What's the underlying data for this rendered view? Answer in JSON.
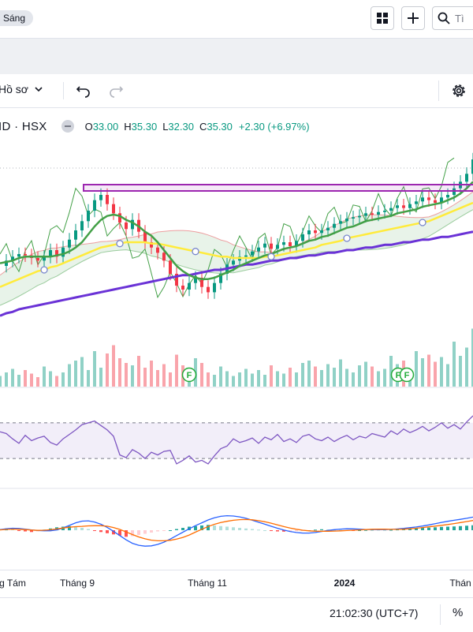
{
  "topbar": {
    "theme_label": "Sáng",
    "search_placeholder": "Tì"
  },
  "toolbar": {
    "profile_label": "Hồ sơ"
  },
  "legend": {
    "symbol": "ID · HSX",
    "o_key": "O",
    "o_val": "33.00",
    "h_key": "H",
    "h_val": "35.30",
    "l_key": "L",
    "l_val": "32.30",
    "c_key": "C",
    "c_val": "35.30",
    "change": "+2.30 (+6.97%)"
  },
  "xaxis": {
    "labels": [
      "g Tám",
      "Tháng 9",
      "Tháng 11",
      "2024",
      "Thán"
    ]
  },
  "status": {
    "clock": "21:02:30 (UTC+7)",
    "percent": "%"
  },
  "colors": {
    "up": "#089981",
    "down": "#f23645",
    "ma_red": "#e5303a",
    "ma_green": "#43a047",
    "ma_yellow": "#ffeb3b",
    "ma_purple": "#6a32d6",
    "rsi": "#7e57c2",
    "zone": "#9c27b0"
  },
  "chart_data": [
    {
      "type": "line",
      "panel": "price",
      "title": "",
      "x": [
        0,
        8,
        16,
        24,
        32,
        40,
        48,
        56,
        64,
        72,
        80,
        88,
        96,
        104,
        112,
        120,
        128,
        136,
        144,
        152,
        160,
        168,
        176,
        184,
        192,
        200,
        208,
        216,
        224,
        232,
        240,
        248,
        256,
        264,
        272,
        280,
        288,
        296,
        304,
        312,
        320,
        328,
        336,
        344,
        352,
        360,
        368,
        376,
        384,
        392,
        400,
        408,
        416,
        424,
        432,
        440,
        448,
        456,
        464,
        472,
        480,
        488,
        496,
        504,
        512,
        520,
        528,
        536,
        544,
        552,
        560,
        568,
        576,
        584,
        592,
        600
      ],
      "series": [
        {
          "values": [
            27.2,
            27.6,
            27.9,
            28.1,
            28.0,
            27.8,
            27.6,
            27.9,
            28.4,
            27.9,
            28.6,
            29.2,
            29.9,
            30.6,
            31.4,
            32.2,
            32.6,
            31.9,
            31.2,
            30.5,
            30.0,
            30.7,
            29.8,
            29.0,
            28.6,
            28.2,
            27.6,
            26.6,
            25.7,
            25.4,
            25.9,
            26.3,
            25.6,
            25.2,
            25.9,
            26.6,
            27.3,
            27.6,
            27.9,
            28.0,
            28.3,
            28.6,
            28.9,
            28.5,
            28.8,
            29.0,
            28.7,
            29.1,
            29.6,
            29.9,
            29.7,
            29.9,
            30.1,
            30.4,
            30.6,
            30.8,
            30.9,
            31.0,
            31.2,
            31.1,
            31.3,
            31.4,
            31.6,
            31.8,
            31.6,
            31.9,
            32.1,
            32.4,
            32.2,
            32.0,
            32.4,
            32.6,
            33.1,
            33.6,
            34.2,
            35.3
          ]
        },
        {
          "values": [
            27.4,
            27.5,
            27.6,
            27.8,
            27.9,
            27.9,
            27.9,
            27.9,
            27.9,
            28.0,
            28.1,
            28.3,
            28.6,
            29.0,
            29.6,
            30.2,
            30.7,
            31.0,
            31.1,
            31.0,
            30.7,
            30.5,
            30.2,
            29.8,
            29.5,
            29.0,
            28.4,
            27.8,
            27.2,
            26.8,
            26.5,
            26.3,
            26.2,
            26.2,
            26.3,
            26.5,
            26.7,
            26.9,
            27.2,
            27.4,
            27.6,
            27.8,
            28.0,
            28.1,
            28.3,
            28.5,
            28.6,
            28.7,
            28.9,
            29.1,
            29.2,
            29.4,
            29.5,
            29.7,
            29.9,
            30.1,
            30.2,
            30.4,
            30.6,
            30.7,
            30.8,
            30.9,
            31.0,
            31.2,
            31.3,
            31.4,
            31.5,
            31.7,
            31.8,
            31.9,
            32.0,
            32.2,
            32.4,
            32.7,
            33.1,
            33.6
          ]
        },
        {
          "values": [
            25.6,
            25.8,
            26.0,
            26.2,
            26.4,
            26.6,
            26.8,
            26.9,
            27.1,
            27.2,
            27.4,
            27.6,
            27.8,
            28.0,
            28.2,
            28.4,
            28.6,
            28.7,
            28.8,
            28.9,
            29.0,
            29.0,
            29.0,
            29.0,
            28.9,
            28.9,
            28.8,
            28.7,
            28.6,
            28.5,
            28.4,
            28.3,
            28.2,
            28.1,
            28.0,
            27.9,
            27.9,
            27.8,
            27.8,
            27.8,
            27.8,
            27.8,
            27.9,
            27.9,
            28.0,
            28.1,
            28.2,
            28.3,
            28.4,
            28.5,
            28.6,
            28.8,
            28.9,
            29.0,
            29.1,
            29.3,
            29.4,
            29.5,
            29.6,
            29.7,
            29.8,
            29.9,
            30.0,
            30.1,
            30.2,
            30.3,
            30.4,
            30.5,
            30.6,
            30.8,
            31.0,
            31.2,
            31.4,
            31.6,
            31.8,
            32.0
          ]
        },
        {
          "values": [
            23.4,
            23.6,
            23.7,
            23.9,
            24.0,
            24.1,
            24.2,
            24.3,
            24.4,
            24.5,
            24.6,
            24.7,
            24.8,
            24.9,
            25.0,
            25.1,
            25.2,
            25.3,
            25.4,
            25.5,
            25.6,
            25.7,
            25.8,
            25.9,
            26.0,
            26.1,
            26.2,
            26.3,
            26.4,
            26.5,
            26.5,
            26.6,
            26.7,
            26.8,
            26.9,
            26.9,
            27.0,
            27.1,
            27.2,
            27.3,
            27.3,
            27.4,
            27.5,
            27.6,
            27.6,
            27.7,
            27.8,
            27.8,
            27.9,
            28.0,
            28.0,
            28.1,
            28.2,
            28.2,
            28.3,
            28.4,
            28.4,
            28.5,
            28.6,
            28.6,
            28.7,
            28.8,
            28.8,
            28.9,
            29.0,
            29.0,
            29.1,
            29.2,
            29.2,
            29.3,
            29.4,
            29.4,
            29.5,
            29.6,
            29.7,
            29.8
          ]
        }
      ],
      "ylim": [
        23,
        35
      ]
    },
    {
      "type": "bar",
      "panel": "volume",
      "title": "",
      "values": [
        9,
        12,
        15,
        10,
        14,
        11,
        8,
        17,
        13,
        9,
        12,
        19,
        22,
        25,
        14,
        30,
        16,
        28,
        35,
        24,
        20,
        18,
        26,
        16,
        22,
        14,
        19,
        12,
        27,
        18,
        15,
        24,
        20,
        12,
        10,
        17,
        13,
        9,
        12,
        15,
        11,
        14,
        10,
        18,
        13,
        11,
        16,
        12,
        20,
        22,
        17,
        14,
        19,
        16,
        23,
        15,
        12,
        18,
        21,
        17,
        13,
        15,
        26,
        19,
        22,
        14,
        30,
        24,
        27,
        21,
        25,
        19,
        38,
        26,
        33,
        49
      ]
    },
    {
      "type": "line",
      "panel": "rsi",
      "title": "",
      "levels": [
        70,
        30
      ],
      "values": [
        60,
        58,
        52,
        47,
        56,
        50,
        53,
        55,
        48,
        45,
        52,
        57,
        62,
        68,
        70,
        72,
        67,
        62,
        55,
        34,
        31,
        40,
        36,
        30,
        37,
        34,
        38,
        39,
        24,
        28,
        33,
        26,
        28,
        24,
        33,
        41,
        44,
        52,
        48,
        50,
        53,
        47,
        54,
        51,
        57,
        49,
        52,
        48,
        55,
        57,
        52,
        50,
        54,
        49,
        53,
        56,
        51,
        55,
        53,
        58,
        56,
        54,
        61,
        57,
        63,
        59,
        62,
        66,
        61,
        65,
        70,
        64,
        68,
        63,
        71,
        78
      ],
      "ylim": [
        0,
        100
      ]
    },
    {
      "type": "bar",
      "panel": "macd",
      "title": "",
      "values": [
        0.1,
        0.15,
        0.1,
        -0.05,
        -0.1,
        -0.15,
        -0.1,
        0.05,
        0.15,
        0.25,
        0.3,
        0.35,
        0.3,
        0.2,
        0.1,
        -0.05,
        -0.15,
        -0.25,
        -0.35,
        -0.45,
        -0.55,
        -0.5,
        -0.4,
        -0.3,
        -0.2,
        -0.1,
        -0.05,
        0.0,
        0.1,
        0.2,
        0.3,
        0.35,
        0.4,
        0.45,
        0.4,
        0.35,
        0.3,
        0.25,
        0.2,
        0.15,
        0.1,
        0.05,
        0.0,
        -0.05,
        -0.1,
        -0.12,
        -0.1,
        -0.08,
        -0.05,
        0.0,
        0.05,
        0.08,
        0.06,
        0.04,
        0.02,
        0.0,
        -0.02,
        0.0,
        0.02,
        0.05,
        0.04,
        0.02,
        0.03,
        0.06,
        0.1,
        0.14,
        0.18,
        0.2,
        0.22,
        0.25,
        0.28,
        0.3,
        0.32,
        0.35,
        0.38,
        0.42
      ]
    }
  ]
}
